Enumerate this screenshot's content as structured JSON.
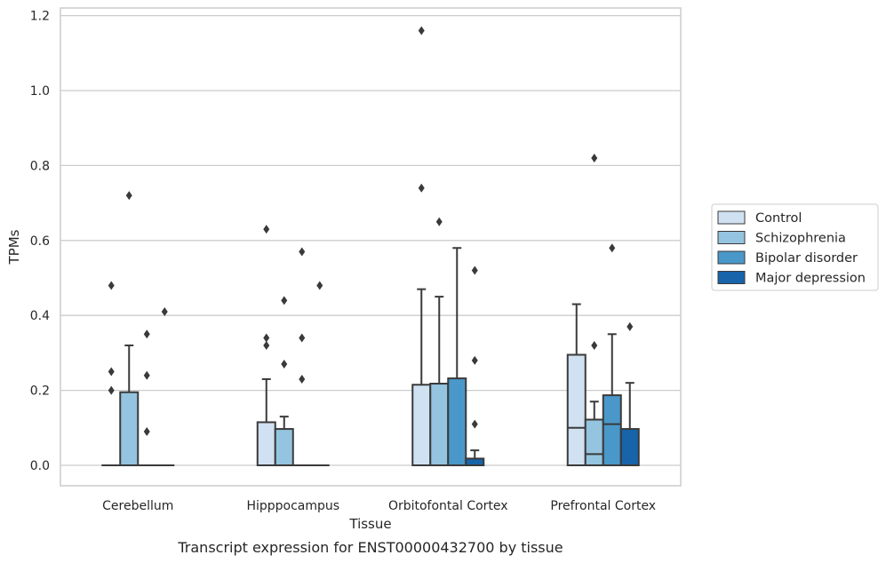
{
  "caption": "Transcript expression for ENST00000432700 by tissue",
  "chart_data": {
    "type": "box",
    "xlabel": "Tissue",
    "ylabel": "TPMs",
    "ylim": [
      -0.057,
      1.22
    ],
    "yticks": [
      "0.0",
      "0.2",
      "0.4",
      "0.6",
      "0.8",
      "1.0",
      "1.2"
    ],
    "grid": true,
    "legend_position": "right",
    "categories": [
      "Cerebellum",
      "Hipppocampus",
      "Orbitofontal Cortex",
      "Prefrontal Cortex"
    ],
    "series": [
      {
        "name": "Control",
        "color": "#d0e1f2",
        "boxes": [
          {
            "q1": 0,
            "median": 0,
            "q3": 0,
            "whisker_low": 0,
            "whisker_high": 0,
            "outliers": [
              0.48,
              0.25,
              0.2
            ]
          },
          {
            "q1": 0,
            "median": 0,
            "q3": 0.115,
            "whisker_low": 0,
            "whisker_high": 0.23,
            "outliers": [
              0.63,
              0.34,
              0.32
            ]
          },
          {
            "q1": 0,
            "median": 0,
            "q3": 0.215,
            "whisker_low": 0,
            "whisker_high": 0.47,
            "outliers": [
              1.16,
              0.74
            ]
          },
          {
            "q1": 0,
            "median": 0.1,
            "q3": 0.295,
            "whisker_low": 0,
            "whisker_high": 0.43,
            "outliers": []
          }
        ]
      },
      {
        "name": "Schizophrenia",
        "color": "#94c4df",
        "boxes": [
          {
            "q1": 0,
            "median": 0,
            "q3": 0.195,
            "whisker_low": 0,
            "whisker_high": 0.32,
            "outliers": [
              0.72
            ]
          },
          {
            "q1": 0,
            "median": 0,
            "q3": 0.097,
            "whisker_low": 0,
            "whisker_high": 0.13,
            "outliers": [
              0.44,
              0.27
            ]
          },
          {
            "q1": 0,
            "median": 0,
            "q3": 0.218,
            "whisker_low": 0,
            "whisker_high": 0.45,
            "outliers": [
              0.65
            ]
          },
          {
            "q1": 0,
            "median": 0.03,
            "q3": 0.122,
            "whisker_low": 0,
            "whisker_high": 0.17,
            "outliers": [
              0.82,
              0.32
            ]
          }
        ]
      },
      {
        "name": "Bipolar disorder",
        "color": "#4a98c9",
        "boxes": [
          {
            "q1": 0,
            "median": 0,
            "q3": 0,
            "whisker_low": 0,
            "whisker_high": 0,
            "outliers": [
              0.35,
              0.24,
              0.09
            ]
          },
          {
            "q1": 0,
            "median": 0,
            "q3": 0,
            "whisker_low": 0,
            "whisker_high": 0,
            "outliers": [
              0.57,
              0.34,
              0.23
            ]
          },
          {
            "q1": 0,
            "median": 0,
            "q3": 0.232,
            "whisker_low": 0,
            "whisker_high": 0.58,
            "outliers": []
          },
          {
            "q1": 0,
            "median": 0.11,
            "q3": 0.187,
            "whisker_low": 0,
            "whisker_high": 0.35,
            "outliers": [
              0.58
            ]
          }
        ]
      },
      {
        "name": "Major depression",
        "color": "#1764ab",
        "boxes": [
          {
            "q1": 0,
            "median": 0,
            "q3": 0,
            "whisker_low": 0,
            "whisker_high": 0,
            "outliers": [
              0.41
            ]
          },
          {
            "q1": 0,
            "median": 0,
            "q3": 0,
            "whisker_low": 0,
            "whisker_high": 0,
            "outliers": [
              0.48
            ]
          },
          {
            "q1": 0,
            "median": 0,
            "q3": 0.018,
            "whisker_low": 0,
            "whisker_high": 0.04,
            "outliers": [
              0.52,
              0.28,
              0.11
            ]
          },
          {
            "q1": 0,
            "median": 0,
            "q3": 0.097,
            "whisker_low": 0,
            "whisker_high": 0.22,
            "outliers": [
              0.37
            ]
          }
        ]
      }
    ]
  }
}
